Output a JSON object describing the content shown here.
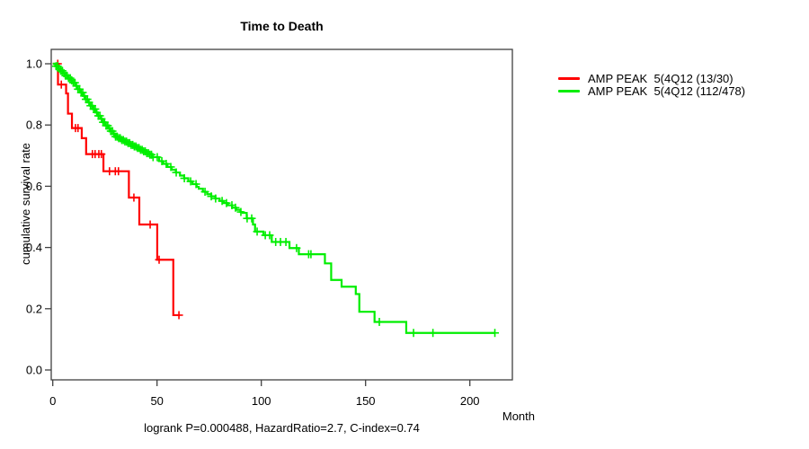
{
  "chart_data": {
    "type": "line",
    "subtype": "kaplan_meier_step",
    "title": "Time to Death",
    "xlabel": "Month",
    "ylabel": "cumulative survival rate",
    "annotation": "logrank P=0.000488, HazardRatio=2.7, C-index=0.74",
    "xlim": [
      0,
      220
    ],
    "ylim": [
      0.0,
      1.0
    ],
    "grid": false,
    "legend_position": "right-outside",
    "xticks": {
      "values": [
        0,
        50,
        100,
        150,
        200
      ],
      "labels": [
        "0",
        "50",
        "100",
        "150",
        "200"
      ]
    },
    "yticks": {
      "values": [
        0.0,
        0.2,
        0.4,
        0.6,
        0.8,
        1.0
      ],
      "labels": [
        "0.0",
        "0.2",
        "0.4",
        "0.6",
        "0.8",
        "1.0"
      ]
    },
    "axis_color": "#404040",
    "series": [
      {
        "name": "AMP PEAK  5(4Q12 (13/30)",
        "color": "#ff0000",
        "start": [
          0,
          1.0
        ],
        "steps": [
          [
            2.5,
            0.932
          ],
          [
            6.4,
            0.903
          ],
          [
            7.3,
            0.837
          ],
          [
            9.2,
            0.79
          ],
          [
            13.9,
            0.757
          ],
          [
            16,
            0.705
          ],
          [
            24.3,
            0.649
          ],
          [
            36.5,
            0.563
          ],
          [
            41.5,
            0.475
          ],
          [
            50.1,
            0.36
          ],
          [
            57.8,
            0.179
          ]
        ],
        "end": 61,
        "censors": [
          2.4,
          4.1,
          10.9,
          12.1,
          19,
          20.3,
          22.1,
          23.3,
          27.2,
          30,
          31.5,
          38.9,
          46.7,
          51,
          60.5
        ]
      },
      {
        "name": "AMP PEAK  5(4Q12 (112/478)",
        "color": "#00ee00",
        "start": [
          0,
          1.0
        ],
        "steps": [
          [
            1.2,
            0.992
          ],
          [
            2.4,
            0.984
          ],
          [
            3.6,
            0.977
          ],
          [
            4.8,
            0.969
          ],
          [
            6,
            0.961
          ],
          [
            7.2,
            0.953
          ],
          [
            8.4,
            0.946
          ],
          [
            9.6,
            0.938
          ],
          [
            10.8,
            0.928
          ],
          [
            12,
            0.917
          ],
          [
            13.2,
            0.906
          ],
          [
            14.4,
            0.895
          ],
          [
            15.6,
            0.884
          ],
          [
            16.8,
            0.874
          ],
          [
            18,
            0.863
          ],
          [
            19.2,
            0.852
          ],
          [
            20.4,
            0.841
          ],
          [
            21.6,
            0.83
          ],
          [
            22.8,
            0.82
          ],
          [
            24,
            0.809
          ],
          [
            25.2,
            0.798
          ],
          [
            26.4,
            0.789
          ],
          [
            27.6,
            0.78
          ],
          [
            28.8,
            0.771
          ],
          [
            30,
            0.762
          ],
          [
            31.5,
            0.757
          ],
          [
            33,
            0.751
          ],
          [
            34.5,
            0.746
          ],
          [
            36,
            0.741
          ],
          [
            37.5,
            0.735
          ],
          [
            39,
            0.73
          ],
          [
            40.5,
            0.725
          ],
          [
            42,
            0.719
          ],
          [
            43.5,
            0.714
          ],
          [
            45,
            0.708
          ],
          [
            46.5,
            0.703
          ],
          [
            48,
            0.695
          ],
          [
            51,
            0.682
          ],
          [
            53,
            0.673
          ],
          [
            55,
            0.663
          ],
          [
            57,
            0.654
          ],
          [
            59,
            0.645
          ],
          [
            61,
            0.635
          ],
          [
            63,
            0.626
          ],
          [
            65,
            0.616
          ],
          [
            67,
            0.607
          ],
          [
            69,
            0.598
          ],
          [
            70,
            0.592
          ],
          [
            72,
            0.582
          ],
          [
            74,
            0.574
          ],
          [
            76,
            0.567
          ],
          [
            78,
            0.56
          ],
          [
            80,
            0.552
          ],
          [
            82,
            0.545
          ],
          [
            84,
            0.538
          ],
          [
            86,
            0.53
          ],
          [
            88,
            0.523
          ],
          [
            90,
            0.516
          ],
          [
            91,
            0.513
          ],
          [
            93,
            0.495
          ],
          [
            96,
            0.475
          ],
          [
            97,
            0.452
          ],
          [
            101,
            0.44
          ],
          [
            105,
            0.418
          ],
          [
            113.5,
            0.398
          ],
          [
            118,
            0.378
          ],
          [
            130.5,
            0.348
          ],
          [
            133.5,
            0.294
          ],
          [
            138.5,
            0.272
          ],
          [
            145.3,
            0.248
          ],
          [
            147,
            0.19
          ],
          [
            154.3,
            0.157
          ],
          [
            169.5,
            0.121
          ]
        ],
        "end": 212,
        "censors": [
          1.6,
          2.35,
          3.1,
          3.85,
          4.6,
          5.35,
          6.1,
          6.85,
          7.6,
          8.35,
          9.1,
          9.85,
          10.6,
          11.35,
          12.1,
          12.85,
          13.6,
          14.35,
          15.1,
          15.85,
          16.6,
          17.35,
          18.1,
          18.85,
          19.6,
          20.35,
          21.1,
          21.85,
          22.6,
          23.35,
          24.1,
          24.85,
          25.6,
          26.35,
          27.1,
          27.85,
          28.6,
          29.35,
          30.1,
          30.85,
          31.6,
          32.35,
          33.1,
          33.85,
          34.6,
          35.35,
          36.1,
          36.85,
          37.6,
          38.35,
          39.1,
          39.85,
          40.6,
          41.35,
          42.1,
          42.85,
          43.6,
          44.35,
          45.1,
          45.85,
          46.6,
          47.35,
          48.1,
          50.1,
          52.3,
          54.4,
          56.6,
          59.2,
          63.1,
          66.1,
          68.7,
          73,
          76,
          78.1,
          81.2,
          83.3,
          85.9,
          87.6,
          90.2,
          93.2,
          95.4,
          98,
          101.9,
          104,
          106.9,
          109.2,
          111.8,
          116.9,
          122.7,
          123.8,
          156.6,
          173,
          182.3,
          212
        ]
      }
    ]
  },
  "legend": {
    "items": [
      {
        "label": "AMP PEAK  5(4Q12 (13/30)",
        "color": "#ff0000"
      },
      {
        "label": "AMP PEAK  5(4Q12 (112/478)",
        "color": "#00ee00"
      }
    ]
  }
}
